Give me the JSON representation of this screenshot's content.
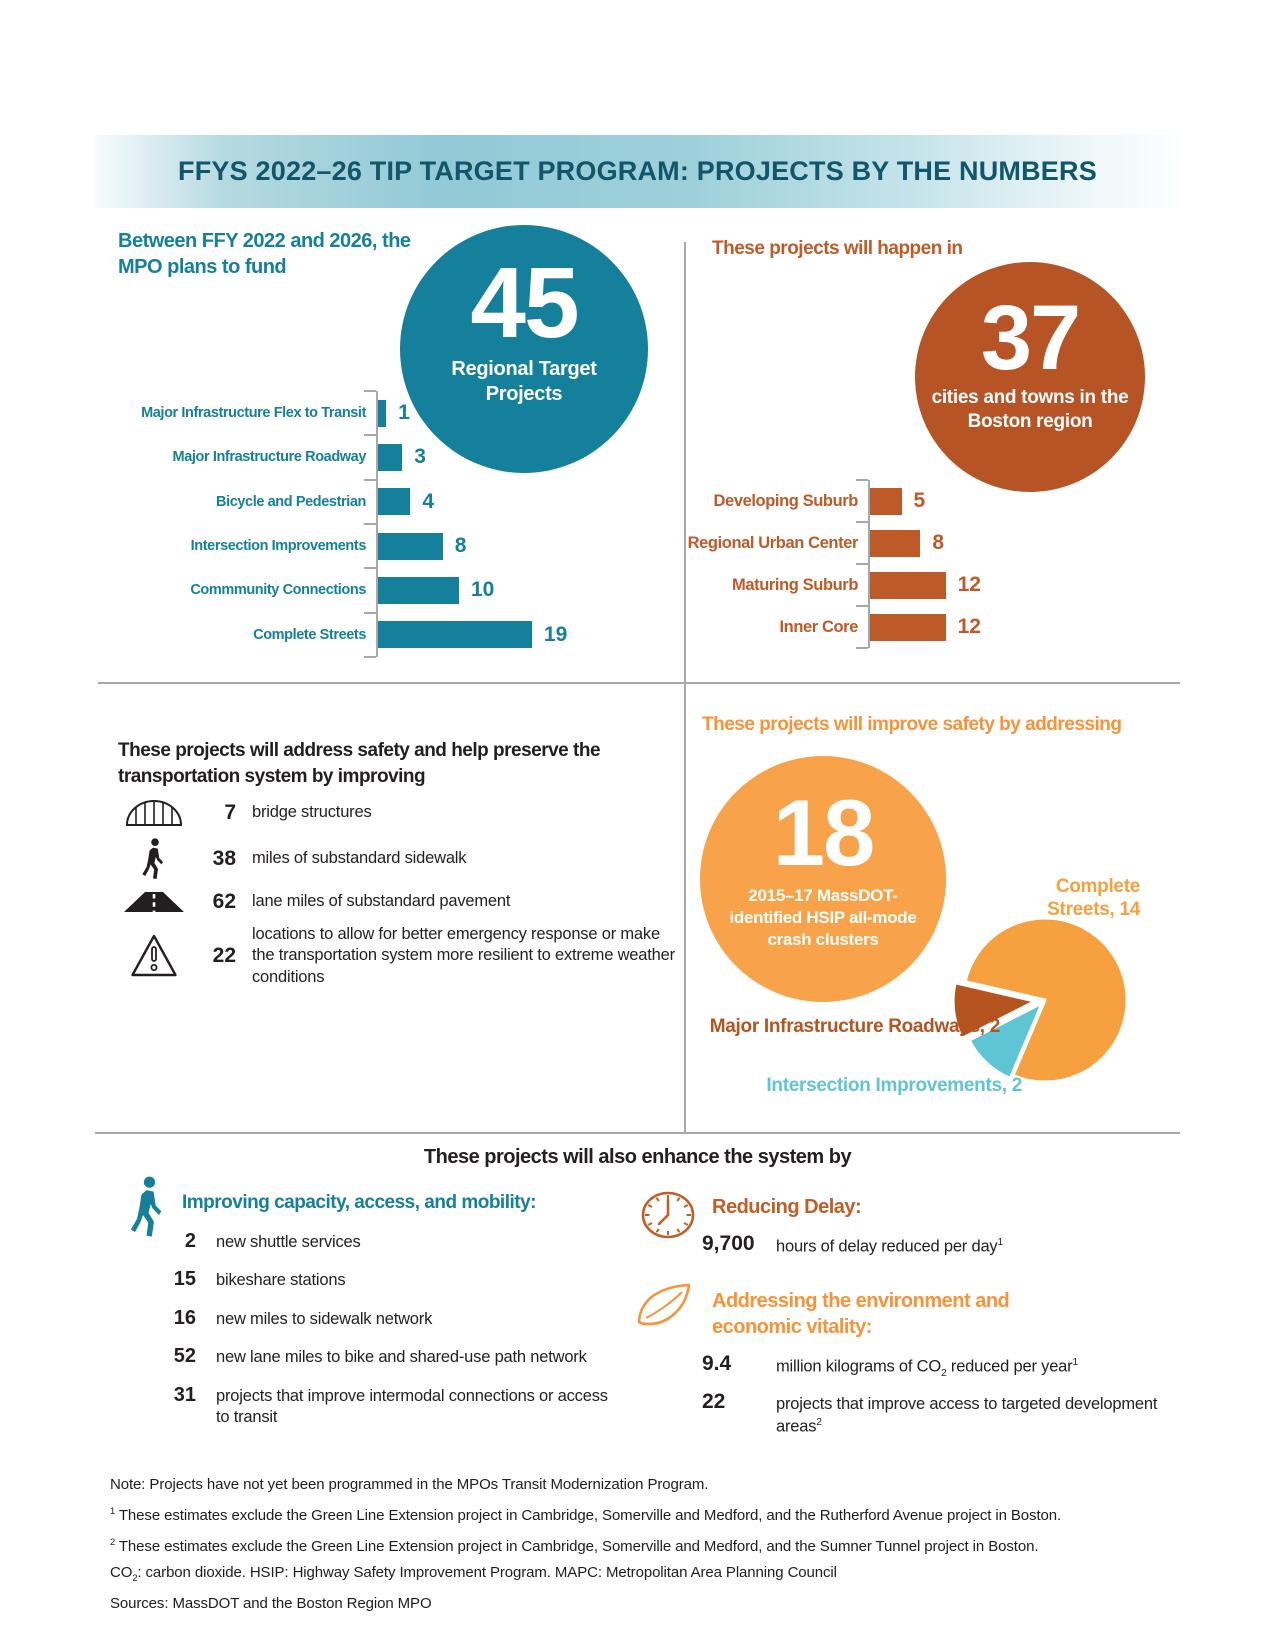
{
  "header": {
    "title": "FFYS 2022–26 TIP TARGET PROGRAM: PROJECTS BY THE NUMBERS"
  },
  "colors": {
    "teal": "#15809c",
    "dark_teal": "#11566b",
    "rust": "#bf5b27",
    "rust_circle": "#b65426",
    "orange": "#f79338",
    "orange_circle": "#f8a349",
    "pie_orange": "#f6a03f",
    "pie_teal": "#5fc4d4",
    "pie_rust": "#b5541f",
    "text_black": "#231f20",
    "divider_gray": "#a8a8a8"
  },
  "funding": {
    "intro": "Between FFY 2022 and 2026, the MPO plans to fund",
    "circle_number": "45",
    "circle_label": "Regional Target Projects"
  },
  "locations": {
    "heading": "These projects will happen in",
    "circle_number": "37",
    "circle_label": "cities and towns in the Boston region"
  },
  "safety_preserve": {
    "heading": "These projects will address safety and help preserve the transportation system by improving",
    "items": [
      {
        "icon": "bridge-icon",
        "value": "7",
        "text": "bridge structures"
      },
      {
        "icon": "pedestrian-icon",
        "value": "38",
        "text": "miles of substandard sidewalk"
      },
      {
        "icon": "road-icon",
        "value": "62",
        "text": "lane miles of substandard pavement"
      },
      {
        "icon": "warning-icon",
        "value": "22",
        "text": "locations to allow for better emergency response or make the transportation system more resilient to extreme weather conditions"
      }
    ]
  },
  "safety_address": {
    "heading": "These projects will improve safety by addressing",
    "circle_number": "18",
    "circle_label": "2015–17 MassDOT-identified HSIP all-mode crash clusters"
  },
  "enhance": {
    "heading": "These projects will also enhance the system by",
    "capacity": {
      "icon": "walking-person-icon",
      "heading": "Improving capacity, access, and mobility:",
      "items": [
        {
          "value": "2",
          "text": "new shuttle services"
        },
        {
          "value": "15",
          "text": "bikeshare stations"
        },
        {
          "value": "16",
          "text": "new miles to sidewalk network"
        },
        {
          "value": "52",
          "text": "new lane miles to bike and shared-use path network"
        },
        {
          "value": "31",
          "text": "projects that improve intermodal connections or access to transit"
        }
      ]
    },
    "delay": {
      "icon": "clock-icon",
      "heading": "Reducing Delay:",
      "value": "9,700",
      "text_segments": [
        {
          "t": "hours of delay reduced per day"
        },
        {
          "t": "1",
          "sup": true
        }
      ]
    },
    "environment": {
      "icon": "leaf-icon",
      "heading": "Addressing the environment and economic vitality:",
      "items": [
        {
          "value": "9.4",
          "segments": [
            {
              "t": "million kilograms of CO"
            },
            {
              "t": "2",
              "sub": true
            },
            {
              "t": " reduced per year"
            },
            {
              "t": "1",
              "sup": true
            }
          ]
        },
        {
          "value": "22",
          "segments": [
            {
              "t": "projects that improve access to targeted development areas"
            },
            {
              "t": "2",
              "sup": true
            }
          ]
        }
      ]
    }
  },
  "footer": {
    "lines": [
      [
        {
          "t": "Note: Projects have not yet been programmed in the MPOs Transit Modernization Program."
        }
      ],
      [
        {
          "t": "1",
          "sup": true
        },
        {
          "t": " These estimates exclude the Green Line Extension project in Cambridge, Somerville and Medford, and the Rutherford Avenue project in Boston."
        }
      ],
      [
        {
          "t": "2",
          "sup": true
        },
        {
          "t": " These estimates exclude the Green Line Extension project in Cambridge, Somerville and Medford, and the Sumner Tunnel project in Boston."
        }
      ],
      [
        {
          "t": "CO"
        },
        {
          "t": "2",
          "sub": true
        },
        {
          "t": ": carbon dioxide. HSIP: Highway Safety Improvement Program. MAPC: Metropolitan Area Planning Council"
        }
      ],
      [
        {
          "t": "Sources: MassDOT and the Boston Region MPO"
        }
      ]
    ]
  },
  "chart_data": [
    {
      "id": "funding-bar-chart",
      "type": "bar",
      "orientation": "horizontal",
      "title": "Between FFY 2022 and 2026, the MPO plans to fund",
      "annotation": "45 Regional Target Projects",
      "categories": [
        "Major Infrastructure Flex to Transit",
        "Major Infrastructure Roadway",
        "Bicycle and Pedestrian",
        "Intersection Improvements",
        "Commmunity Connections",
        "Complete Streets"
      ],
      "values": [
        1,
        3,
        4,
        8,
        10,
        19
      ],
      "bar_color": "#15809c",
      "xlim": [
        0,
        20
      ],
      "grid": false,
      "legend": false
    },
    {
      "id": "location-bar-chart",
      "type": "bar",
      "orientation": "horizontal",
      "title": "These projects will happen in",
      "annotation": "37 cities and towns in the Boston region",
      "categories": [
        "Developing Suburb",
        "Regional Urban Center",
        "Maturing Suburb",
        "Inner Core"
      ],
      "values": [
        5,
        8,
        12,
        12
      ],
      "bar_color": "#bd5a28",
      "xlim": [
        0,
        13
      ],
      "grid": false,
      "legend": false
    },
    {
      "id": "crash-pie-chart",
      "type": "pie",
      "title": "These projects will improve safety by addressing",
      "annotation": "18 2015–17 MassDOT-identified HSIP all-mode crash clusters",
      "slices": [
        {
          "label": "Complete Streets",
          "value": 14,
          "color": "#f6a03f"
        },
        {
          "label": "Intersection Improvements",
          "value": 2,
          "color": "#5fc4d4"
        },
        {
          "label": "Major Infrastructure Roadways",
          "value": 2,
          "color": "#b5541f"
        }
      ],
      "start_angle_deg": 193,
      "clockwise": true
    }
  ]
}
